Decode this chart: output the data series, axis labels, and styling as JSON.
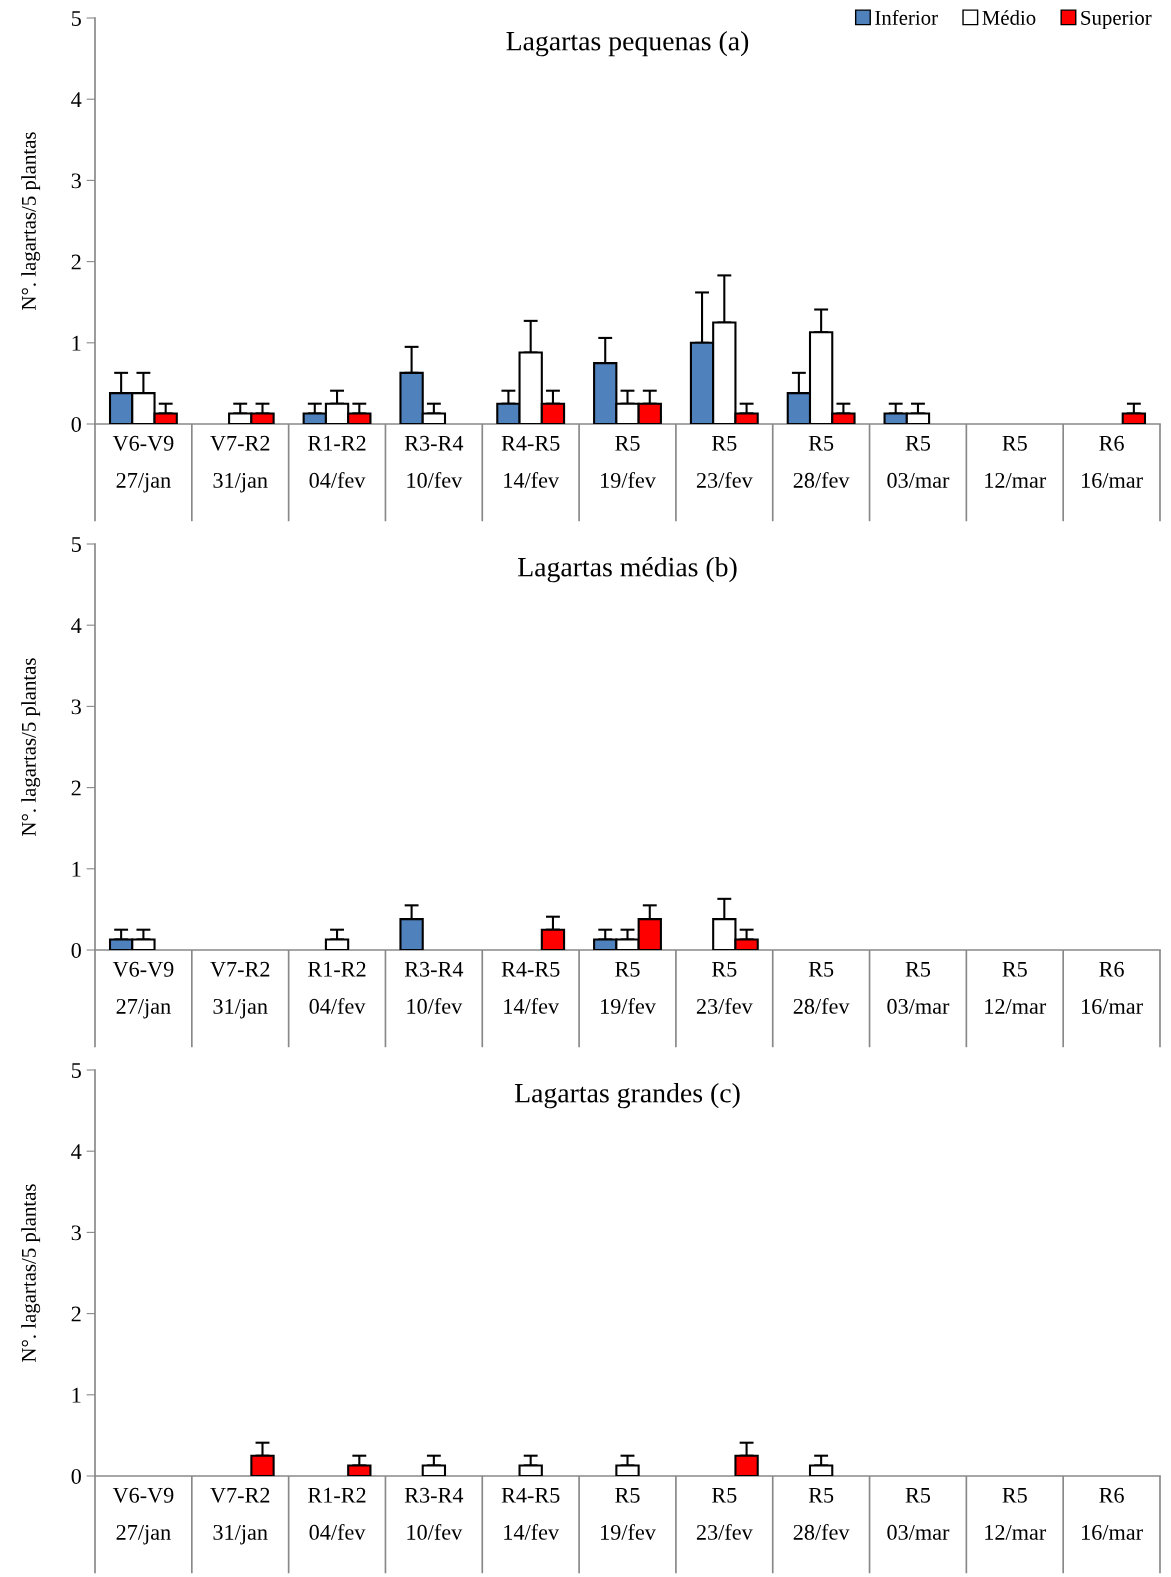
{
  "chart_data": [
    {
      "type": "bar",
      "title": "Lagartas pequenas (a)",
      "ylabel": "N°. lagartas/5 plantas",
      "categories": [
        "V6-V9\n27/jan",
        "V7-R2\n31/jan",
        "R1-R2\n04/fev",
        "R3-R4\n10/fev",
        "R4-R5\n14/fev",
        "R5\n19/fev",
        "R5\n23/fev",
        "R5\n28/fev",
        "R5\n03/mar",
        "R5\n12/mar",
        "R6\n16/mar"
      ],
      "ylim": [
        0,
        5
      ],
      "yticks": [
        0,
        1,
        2,
        3,
        4,
        5
      ],
      "legend": "top right",
      "series": [
        {
          "name": "Inferior",
          "color": "#4f81bd",
          "values": [
            0.38,
            0,
            0.13,
            0.63,
            0.25,
            0.75,
            1.0,
            0.38,
            0.13,
            0,
            0
          ],
          "errors": [
            [
              0.38,
              0.63
            ],
            null,
            [
              0.13,
              0.25
            ],
            [
              0.63,
              0.95
            ],
            [
              0.25,
              0.41
            ],
            [
              0.75,
              1.06
            ],
            [
              1.0,
              1.62
            ],
            [
              0.38,
              0.63
            ],
            [
              0.13,
              0.25
            ],
            null,
            null
          ]
        },
        {
          "name": "Médio",
          "color": "#ffffff",
          "values": [
            0.38,
            0.13,
            0.25,
            0.13,
            0.88,
            0.25,
            1.25,
            1.13,
            0.13,
            0,
            0
          ],
          "errors": [
            [
              0.38,
              0.63
            ],
            [
              0.13,
              0.25
            ],
            [
              0.25,
              0.41
            ],
            [
              0.13,
              0.25
            ],
            [
              0.88,
              1.27
            ],
            [
              0.25,
              0.41
            ],
            [
              1.25,
              1.83
            ],
            [
              1.13,
              1.41
            ],
            [
              0.13,
              0.25
            ],
            null,
            null
          ]
        },
        {
          "name": "Superior",
          "color": "#ff0000",
          "values": [
            0.13,
            0.13,
            0.13,
            0,
            0.25,
            0.25,
            0.13,
            0.13,
            0,
            0,
            0.13
          ],
          "errors": [
            [
              0.13,
              0.25
            ],
            [
              0.13,
              0.25
            ],
            [
              0.13,
              0.25
            ],
            null,
            [
              0.25,
              0.41
            ],
            [
              0.25,
              0.41
            ],
            [
              0.13,
              0.25
            ],
            [
              0.13,
              0.25
            ],
            null,
            null,
            [
              0.13,
              0.25
            ]
          ]
        }
      ]
    },
    {
      "type": "bar",
      "title": "Lagartas médias (b)",
      "ylabel": "N°. lagartas/5 plantas",
      "categories": [
        "V6-V9\n27/jan",
        "V7-R2\n31/jan",
        "R1-R2\n04/fev",
        "R3-R4\n10/fev",
        "R4-R5\n14/fev",
        "R5\n19/fev",
        "R5\n23/fev",
        "R5\n28/fev",
        "R5\n03/mar",
        "R5\n12/mar",
        "R6\n16/mar"
      ],
      "ylim": [
        0,
        5
      ],
      "yticks": [
        0,
        1,
        2,
        3,
        4,
        5
      ],
      "series": [
        {
          "color": "#4f81bd",
          "values": [
            0.13,
            0,
            0,
            0.38,
            0,
            0.13,
            0,
            0,
            0,
            0,
            0
          ],
          "errors": [
            [
              0.13,
              0.25
            ],
            null,
            null,
            [
              0.38,
              0.55
            ],
            null,
            [
              0.13,
              0.25
            ],
            null,
            null,
            null,
            null,
            null
          ]
        },
        {
          "color": "#ffffff",
          "values": [
            0.13,
            0,
            0.13,
            0,
            0,
            0.13,
            0.38,
            0,
            0,
            0,
            0
          ],
          "errors": [
            [
              0.13,
              0.25
            ],
            null,
            [
              0.13,
              0.25
            ],
            null,
            null,
            [
              0.13,
              0.25
            ],
            [
              0.38,
              0.63
            ],
            null,
            null,
            null,
            null
          ]
        },
        {
          "color": "#ff0000",
          "values": [
            0,
            0,
            0,
            0,
            0.25,
            0.38,
            0.13,
            0,
            0,
            0,
            0
          ],
          "errors": [
            null,
            null,
            null,
            null,
            [
              0.25,
              0.41
            ],
            [
              0.38,
              0.55
            ],
            [
              0.13,
              0.25
            ],
            null,
            null,
            null,
            null
          ]
        }
      ]
    },
    {
      "type": "bar",
      "title": "Lagartas grandes (c)",
      "ylabel": "N°. lagartas/5 plantas",
      "categories": [
        "V6-V9\n27/jan",
        "V7-R2\n31/jan",
        "R1-R2\n04/fev",
        "R3-R4\n10/fev",
        "R4-R5\n14/fev",
        "R5\n19/fev",
        "R5\n23/fev",
        "R5\n28/fev",
        "R5\n03/mar",
        "R5\n12/mar",
        "R6\n16/mar"
      ],
      "ylim": [
        0,
        5
      ],
      "yticks": [
        0,
        1,
        2,
        3,
        4,
        5
      ],
      "series": [
        {
          "color": "#4f81bd",
          "values": [
            0,
            0,
            0,
            0,
            0,
            0,
            0,
            0,
            0,
            0,
            0
          ]
        },
        {
          "color": "#ffffff",
          "values": [
            0,
            0,
            0,
            0.13,
            0.13,
            0.13,
            0,
            0.13,
            0,
            0,
            0
          ],
          "errors": [
            null,
            null,
            null,
            [
              0.13,
              0.25
            ],
            [
              0.13,
              0.25
            ],
            [
              0.13,
              0.25
            ],
            null,
            [
              0.13,
              0.25
            ],
            null,
            null,
            null
          ]
        },
        {
          "color": "#ff0000",
          "values": [
            0,
            0.25,
            0.13,
            0,
            0,
            0,
            0.25,
            0,
            0,
            0,
            0
          ],
          "errors": [
            null,
            [
              0.25,
              0.41
            ],
            [
              0.13,
              0.25
            ],
            null,
            null,
            null,
            [
              0.25,
              0.41
            ],
            null,
            null,
            null,
            null
          ]
        }
      ]
    }
  ]
}
